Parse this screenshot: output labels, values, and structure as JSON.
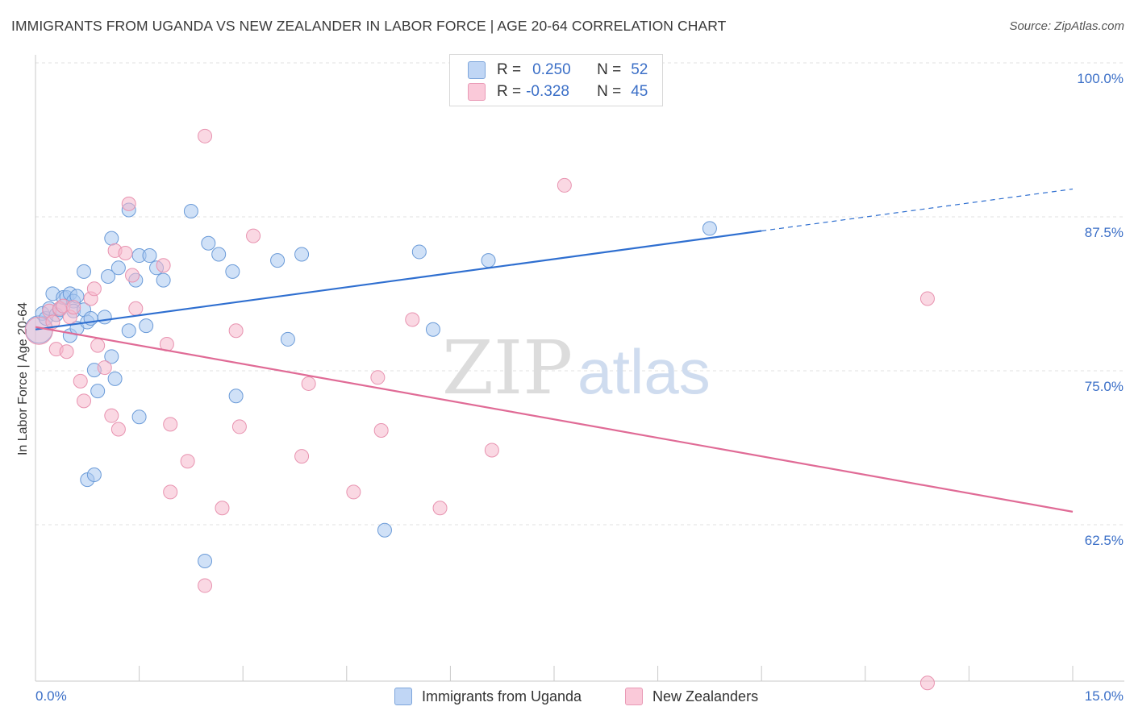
{
  "title": "IMMIGRANTS FROM UGANDA VS NEW ZEALANDER IN LABOR FORCE | AGE 20-64 CORRELATION CHART",
  "source": "Source: ZipAtlas.com",
  "watermark": {
    "zip": "ZIP",
    "atlas": "atlas"
  },
  "colors": {
    "blue_fill": "#aac8f0",
    "blue_stroke": "#6b9bd8",
    "blue_line": "#2f6fd0",
    "pink_fill": "#f6b8cc",
    "pink_stroke": "#e893b0",
    "pink_line": "#e06b96",
    "tick_text": "#3b6fc7",
    "grid": "#e0e0e0"
  },
  "legend": {
    "r_label": "R =",
    "n_label": "N =",
    "series": [
      {
        "r": "0.250",
        "n": "52"
      },
      {
        "r": "-0.328",
        "n": "45"
      }
    ]
  },
  "chart_data": {
    "type": "scatter",
    "title": "IMMIGRANTS FROM UGANDA VS NEW ZEALANDER IN LABOR FORCE | AGE 20-64 CORRELATION CHART",
    "xlabel": "",
    "ylabel": "In Labor Force | Age 20-64",
    "xlim": [
      0,
      15
    ],
    "ylim": [
      50,
      102
    ],
    "x_tick_labels": [
      "0.0%",
      "15.0%"
    ],
    "y_ticks": [
      62.5,
      75.0,
      87.5,
      100.0
    ],
    "y_tick_labels": [
      "62.5%",
      "75.0%",
      "87.5%",
      "100.0%"
    ],
    "grid": true,
    "legend_position": "top-center",
    "series": [
      {
        "name": "Immigrants from Uganda",
        "color": "#aac8f0",
        "trend": {
          "x0": 0,
          "y0": 79.6,
          "x1": 10.5,
          "y1": 87.6,
          "x_dash_end": 15,
          "y_dash_end": 91.0
        },
        "points": [
          [
            0.05,
            79.6,
            2.2
          ],
          [
            0.1,
            80.9,
            1
          ],
          [
            0.15,
            80.5,
            1
          ],
          [
            0.2,
            81.3,
            1
          ],
          [
            0.25,
            82.5,
            1
          ],
          [
            0.3,
            80.8,
            1
          ],
          [
            0.35,
            81.2,
            1
          ],
          [
            0.4,
            82.2,
            1
          ],
          [
            0.45,
            82.2,
            1
          ],
          [
            0.5,
            82.5,
            1
          ],
          [
            0.55,
            81.9,
            1
          ],
          [
            0.6,
            82.3,
            1
          ],
          [
            0.5,
            79.1,
            1
          ],
          [
            0.55,
            81.1,
            1
          ],
          [
            0.6,
            79.7,
            1
          ],
          [
            0.7,
            81.2,
            1
          ],
          [
            0.75,
            80.2,
            1
          ],
          [
            0.8,
            80.5,
            1
          ],
          [
            0.7,
            84.3,
            1
          ],
          [
            0.85,
            76.3,
            1
          ],
          [
            0.9,
            74.6,
            1
          ],
          [
            0.75,
            67.4,
            1
          ],
          [
            0.85,
            67.8,
            1
          ],
          [
            1.0,
            80.6,
            1
          ],
          [
            1.05,
            83.9,
            1
          ],
          [
            1.1,
            77.4,
            1
          ],
          [
            1.15,
            75.6,
            1
          ],
          [
            1.2,
            84.6,
            1
          ],
          [
            1.1,
            87.0,
            1
          ],
          [
            1.35,
            79.5,
            1
          ],
          [
            1.45,
            83.6,
            1
          ],
          [
            1.6,
            79.9,
            1
          ],
          [
            1.35,
            89.3,
            1
          ],
          [
            1.5,
            85.6,
            1
          ],
          [
            1.65,
            85.6,
            1
          ],
          [
            1.75,
            84.6,
            1
          ],
          [
            1.85,
            83.6,
            1
          ],
          [
            1.5,
            72.5,
            1
          ],
          [
            2.25,
            89.2,
            1
          ],
          [
            2.5,
            86.6,
            1
          ],
          [
            2.65,
            85.7,
            1
          ],
          [
            2.85,
            84.3,
            1
          ],
          [
            2.9,
            74.2,
            1
          ],
          [
            3.5,
            85.2,
            1
          ],
          [
            3.65,
            78.8,
            1
          ],
          [
            3.85,
            85.7,
            1
          ],
          [
            2.45,
            60.8,
            1
          ],
          [
            5.55,
            85.9,
            1
          ],
          [
            5.75,
            79.6,
            1
          ],
          [
            6.55,
            85.2,
            1
          ],
          [
            5.05,
            63.3,
            1
          ],
          [
            9.75,
            87.8,
            1
          ]
        ]
      },
      {
        "name": "New Zealanders",
        "color": "#f6b8cc",
        "trend": {
          "x0": 0,
          "y0": 79.8,
          "x1": 15,
          "y1": 64.8
        },
        "points": [
          [
            0.05,
            79.5,
            2.2
          ],
          [
            0.2,
            81.1,
            1
          ],
          [
            0.25,
            80.2,
            1
          ],
          [
            0.35,
            81.3,
            1
          ],
          [
            0.3,
            78.0,
            1
          ],
          [
            0.45,
            77.8,
            1
          ],
          [
            0.4,
            81.5,
            1
          ],
          [
            0.5,
            80.6,
            1
          ],
          [
            0.55,
            81.4,
            1
          ],
          [
            0.65,
            75.4,
            1
          ],
          [
            0.8,
            82.1,
            1
          ],
          [
            0.85,
            82.9,
            1
          ],
          [
            0.7,
            73.8,
            1
          ],
          [
            0.9,
            78.3,
            1
          ],
          [
            1.0,
            76.5,
            1
          ],
          [
            1.1,
            72.6,
            1
          ],
          [
            1.2,
            71.5,
            1
          ],
          [
            1.15,
            86.0,
            1
          ],
          [
            1.3,
            85.8,
            1
          ],
          [
            1.35,
            89.8,
            1
          ],
          [
            1.45,
            81.3,
            1
          ],
          [
            1.4,
            84.0,
            1
          ],
          [
            1.85,
            84.8,
            1
          ],
          [
            1.9,
            78.4,
            1
          ],
          [
            1.95,
            71.9,
            1
          ],
          [
            2.2,
            68.9,
            1
          ],
          [
            1.95,
            66.4,
            1
          ],
          [
            2.45,
            95.3,
            1
          ],
          [
            2.7,
            65.1,
            1
          ],
          [
            2.9,
            79.5,
            1
          ],
          [
            2.95,
            71.7,
            1
          ],
          [
            3.15,
            87.2,
            1
          ],
          [
            3.95,
            75.2,
            1
          ],
          [
            3.85,
            69.3,
            1
          ],
          [
            4.6,
            66.4,
            1
          ],
          [
            4.95,
            75.7,
            1
          ],
          [
            5.0,
            71.4,
            1
          ],
          [
            5.45,
            80.4,
            1
          ],
          [
            5.85,
            65.1,
            1
          ],
          [
            6.6,
            69.8,
            1
          ],
          [
            7.65,
            91.3,
            1
          ],
          [
            2.45,
            58.8,
            1
          ],
          [
            12.9,
            82.1,
            1
          ],
          [
            12.9,
            50.9,
            1
          ],
          [
            2.0,
            87.5,
            0
          ]
        ]
      }
    ]
  }
}
